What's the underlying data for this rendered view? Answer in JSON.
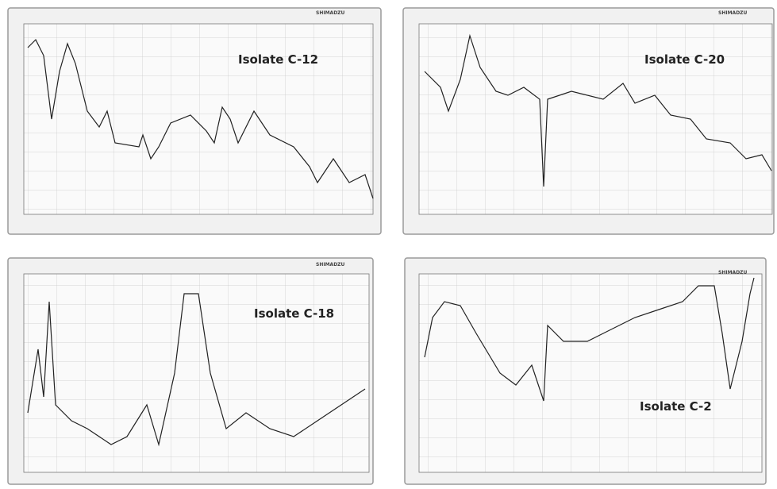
{
  "panels": [
    {
      "label": "Isolate C-12",
      "brand": "SHIMADZU"
    },
    {
      "label": "Isolate C-20",
      "brand": "SHIMADZU"
    },
    {
      "label": "Isolate C-18",
      "brand": "SHIMADZU"
    },
    {
      "label": "Isolate C-2",
      "brand": "SHIMADZU"
    }
  ]
}
